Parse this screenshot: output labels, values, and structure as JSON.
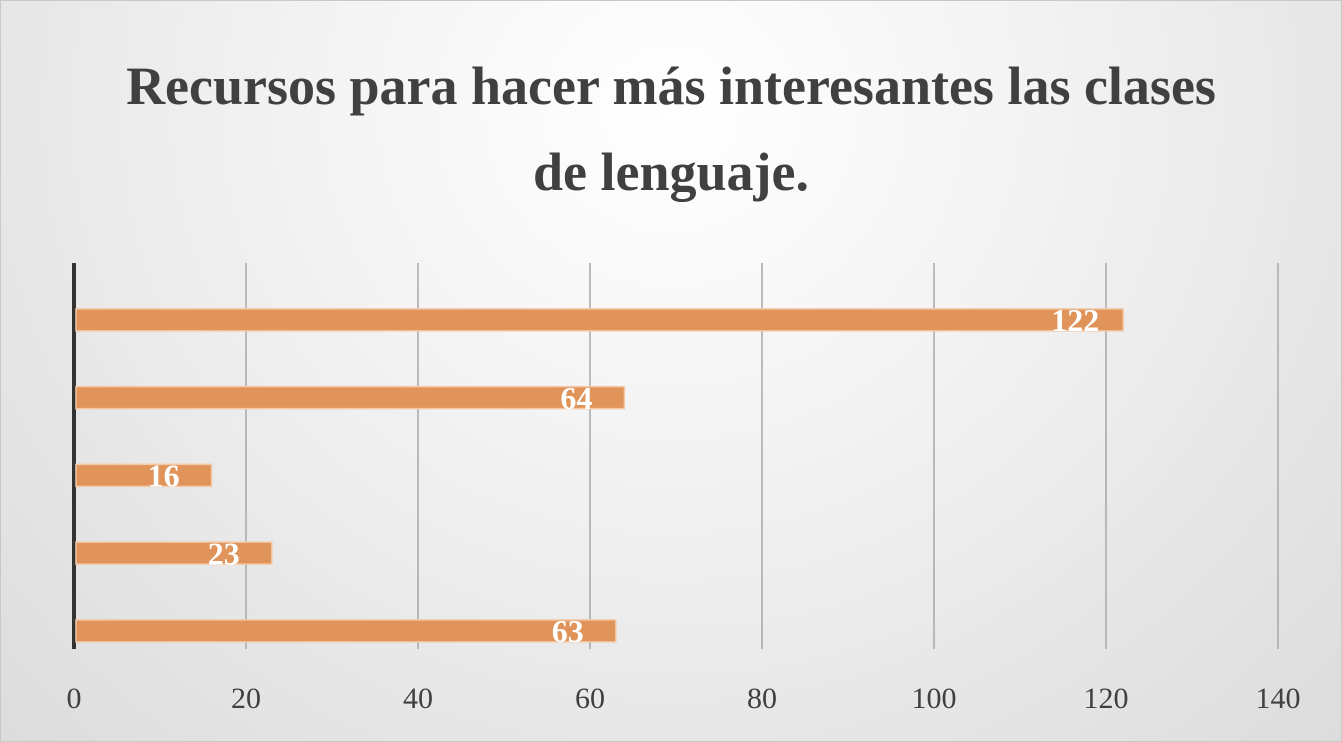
{
  "chart_data": {
    "type": "barh",
    "title": "Recursos para hacer más interesantes las clases de lenguaje.",
    "categories": [
      null,
      null,
      null,
      null,
      null
    ],
    "values": [
      122,
      64,
      16,
      23,
      63
    ],
    "color": "#e0945a",
    "xlim": [
      0,
      140
    ],
    "xticks": [
      0,
      20,
      40,
      60,
      80,
      100,
      120,
      140
    ],
    "grid": true
  }
}
